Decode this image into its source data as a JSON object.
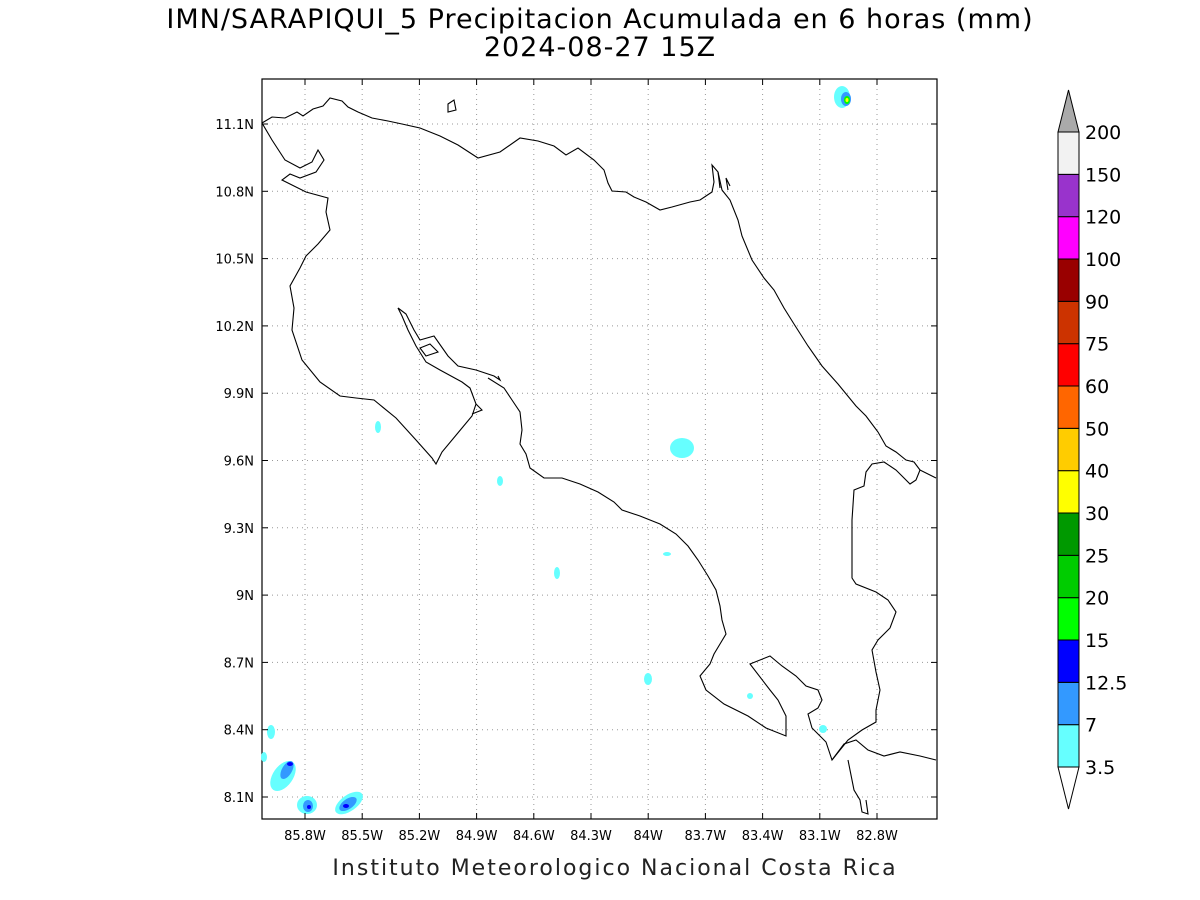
{
  "title": {
    "line1": "IMN/SARAPIQUI_5 Precipitacion Acumulada en 6 horas (mm)",
    "line2": "2024-08-27 15Z"
  },
  "credit": "Instituto Meteorologico Nacional Costa Rica",
  "map": {
    "lon_range": [
      -86.0,
      -82.5
    ],
    "lat_range": [
      8.0,
      11.3
    ],
    "lat_ticks": [
      "11.1N",
      "10.8N",
      "10.5N",
      "10.2N",
      "9.9N",
      "9.6N",
      "9.3N",
      "9N",
      "8.7N",
      "8.4N",
      "8.1N"
    ],
    "lon_ticks": [
      "85.8W",
      "85.5W",
      "85.2W",
      "84.9W",
      "84.6W",
      "84.3W",
      "84W",
      "83.7W",
      "83.4W",
      "83.1W",
      "82.8W"
    ],
    "grid": true
  },
  "colorbar": {
    "levels": [
      "3.5",
      "7",
      "12.5",
      "15",
      "20",
      "25",
      "30",
      "40",
      "50",
      "60",
      "75",
      "90",
      "100",
      "120",
      "150",
      "200"
    ],
    "colors": [
      "#66ffff",
      "#3399ff",
      "#0000ff",
      "#00ff00",
      "#00cc00",
      "#009900",
      "#ffff00",
      "#ffcc00",
      "#ff6600",
      "#ff0000",
      "#cc3300",
      "#990000",
      "#ff00ff",
      "#9933cc",
      "#f2f2f2"
    ],
    "below_color": "#ffffff",
    "above_color": "#aaaaaa"
  }
}
